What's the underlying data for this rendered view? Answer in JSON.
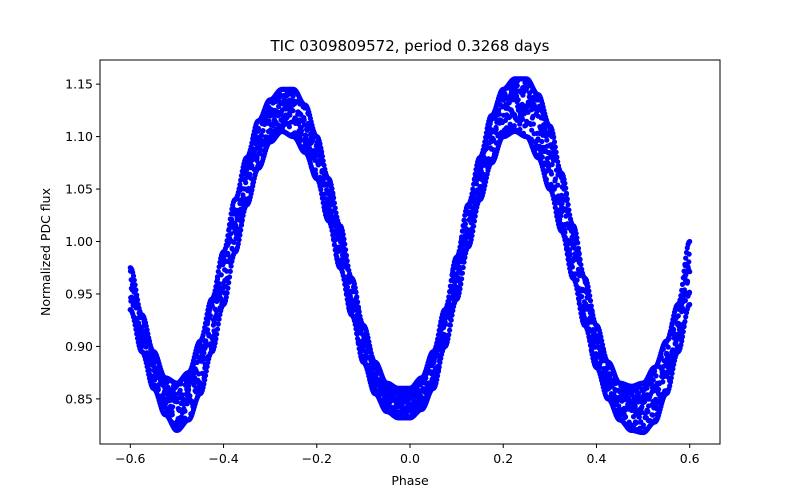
{
  "chart_data": {
    "type": "scatter",
    "title": "TIC 0309809572, period 0.3268 days",
    "xlabel": "Phase",
    "ylabel": "Normalized PDC flux",
    "xlim": [
      -0.665,
      0.665
    ],
    "ylim": [
      0.807,
      1.173
    ],
    "xticks": [
      -0.6,
      -0.4,
      -0.2,
      0.0,
      0.2,
      0.4,
      0.6
    ],
    "xtick_labels": [
      "−0.6",
      "−0.4",
      "−0.2",
      "0.0",
      "0.2",
      "0.4",
      "0.6"
    ],
    "yticks": [
      0.85,
      0.9,
      0.95,
      1.0,
      1.05,
      1.1,
      1.15
    ],
    "ytick_labels": [
      "0.85",
      "0.90",
      "0.95",
      "1.00",
      "1.05",
      "1.10",
      "1.15"
    ],
    "grid": false,
    "color": "#0000ff",
    "series": [
      {
        "name": "",
        "x": [
          -0.6,
          -0.575,
          -0.55,
          -0.525,
          -0.5,
          -0.475,
          -0.45,
          -0.425,
          -0.4,
          -0.375,
          -0.35,
          -0.325,
          -0.3,
          -0.275,
          -0.25,
          -0.225,
          -0.2,
          -0.175,
          -0.15,
          -0.125,
          -0.1,
          -0.075,
          -0.05,
          -0.025,
          0.0,
          0.025,
          0.05,
          0.075,
          0.1,
          0.125,
          0.15,
          0.175,
          0.2,
          0.225,
          0.25,
          0.275,
          0.3,
          0.325,
          0.35,
          0.375,
          0.4,
          0.425,
          0.45,
          0.475,
          0.5,
          0.525,
          0.55,
          0.575,
          0.6
        ],
        "y_upper": [
          0.975,
          0.93,
          0.895,
          0.87,
          0.865,
          0.875,
          0.905,
          0.945,
          0.99,
          1.04,
          1.08,
          1.115,
          1.135,
          1.145,
          1.145,
          1.13,
          1.1,
          1.06,
          1.015,
          0.965,
          0.92,
          0.885,
          0.865,
          0.86,
          0.86,
          0.87,
          0.895,
          0.935,
          0.985,
          1.035,
          1.08,
          1.12,
          1.145,
          1.155,
          1.155,
          1.14,
          1.11,
          1.065,
          1.015,
          0.965,
          0.92,
          0.885,
          0.865,
          0.862,
          0.865,
          0.88,
          0.905,
          0.94,
          1.0
        ],
        "y_lower": [
          0.935,
          0.895,
          0.86,
          0.835,
          0.82,
          0.83,
          0.855,
          0.895,
          0.94,
          0.99,
          1.035,
          1.07,
          1.095,
          1.105,
          1.1,
          1.085,
          1.06,
          1.02,
          0.975,
          0.93,
          0.885,
          0.855,
          0.838,
          0.832,
          0.832,
          0.84,
          0.86,
          0.9,
          0.945,
          0.995,
          1.04,
          1.075,
          1.1,
          1.105,
          1.1,
          1.08,
          1.05,
          1.01,
          0.965,
          0.92,
          0.88,
          0.85,
          0.83,
          0.82,
          0.818,
          0.828,
          0.855,
          0.895,
          0.94
        ]
      }
    ]
  }
}
